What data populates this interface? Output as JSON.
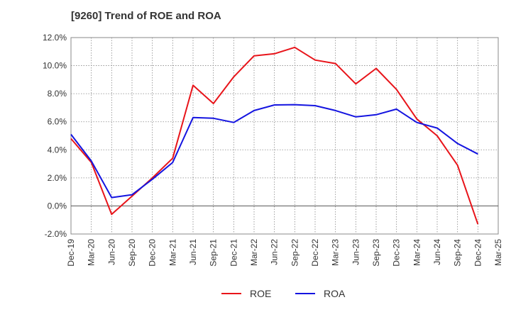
{
  "chart_data": {
    "type": "line",
    "title": "[9260]  Trend of ROE and ROA",
    "xlabel": "",
    "ylabel": "",
    "categories": [
      "Dec-19",
      "Mar-20",
      "Jun-20",
      "Sep-20",
      "Dec-20",
      "Mar-21",
      "Jun-21",
      "Sep-21",
      "Dec-21",
      "Mar-22",
      "Jun-22",
      "Sep-22",
      "Dec-22",
      "Mar-23",
      "Jun-23",
      "Sep-23",
      "Dec-23",
      "Mar-24",
      "Jun-24",
      "Sep-24",
      "Dec-24",
      "Mar-25"
    ],
    "ylim": [
      -2.0,
      12.0
    ],
    "yticks": [
      -2.0,
      0.0,
      2.0,
      4.0,
      6.0,
      8.0,
      10.0,
      12.0
    ],
    "ytick_labels": [
      "-2.0%",
      "0.0%",
      "2.0%",
      "4.0%",
      "6.0%",
      "8.0%",
      "10.0%",
      "12.0%"
    ],
    "grid": true,
    "legend_position": "bottom",
    "series": [
      {
        "name": "ROE",
        "color": "#e8141a",
        "values": [
          4.8,
          3.1,
          -0.6,
          0.7,
          2.0,
          3.4,
          8.6,
          7.3,
          9.2,
          10.7,
          10.85,
          11.3,
          10.4,
          10.15,
          8.7,
          9.8,
          8.3,
          6.2,
          5.0,
          2.9,
          -1.3,
          null
        ]
      },
      {
        "name": "ROA",
        "color": "#1414e0",
        "values": [
          5.1,
          3.2,
          0.6,
          0.8,
          1.9,
          3.1,
          6.3,
          6.25,
          5.95,
          6.8,
          7.2,
          7.22,
          7.15,
          6.8,
          6.35,
          6.5,
          6.9,
          5.95,
          5.55,
          4.45,
          3.7,
          null
        ]
      }
    ]
  }
}
